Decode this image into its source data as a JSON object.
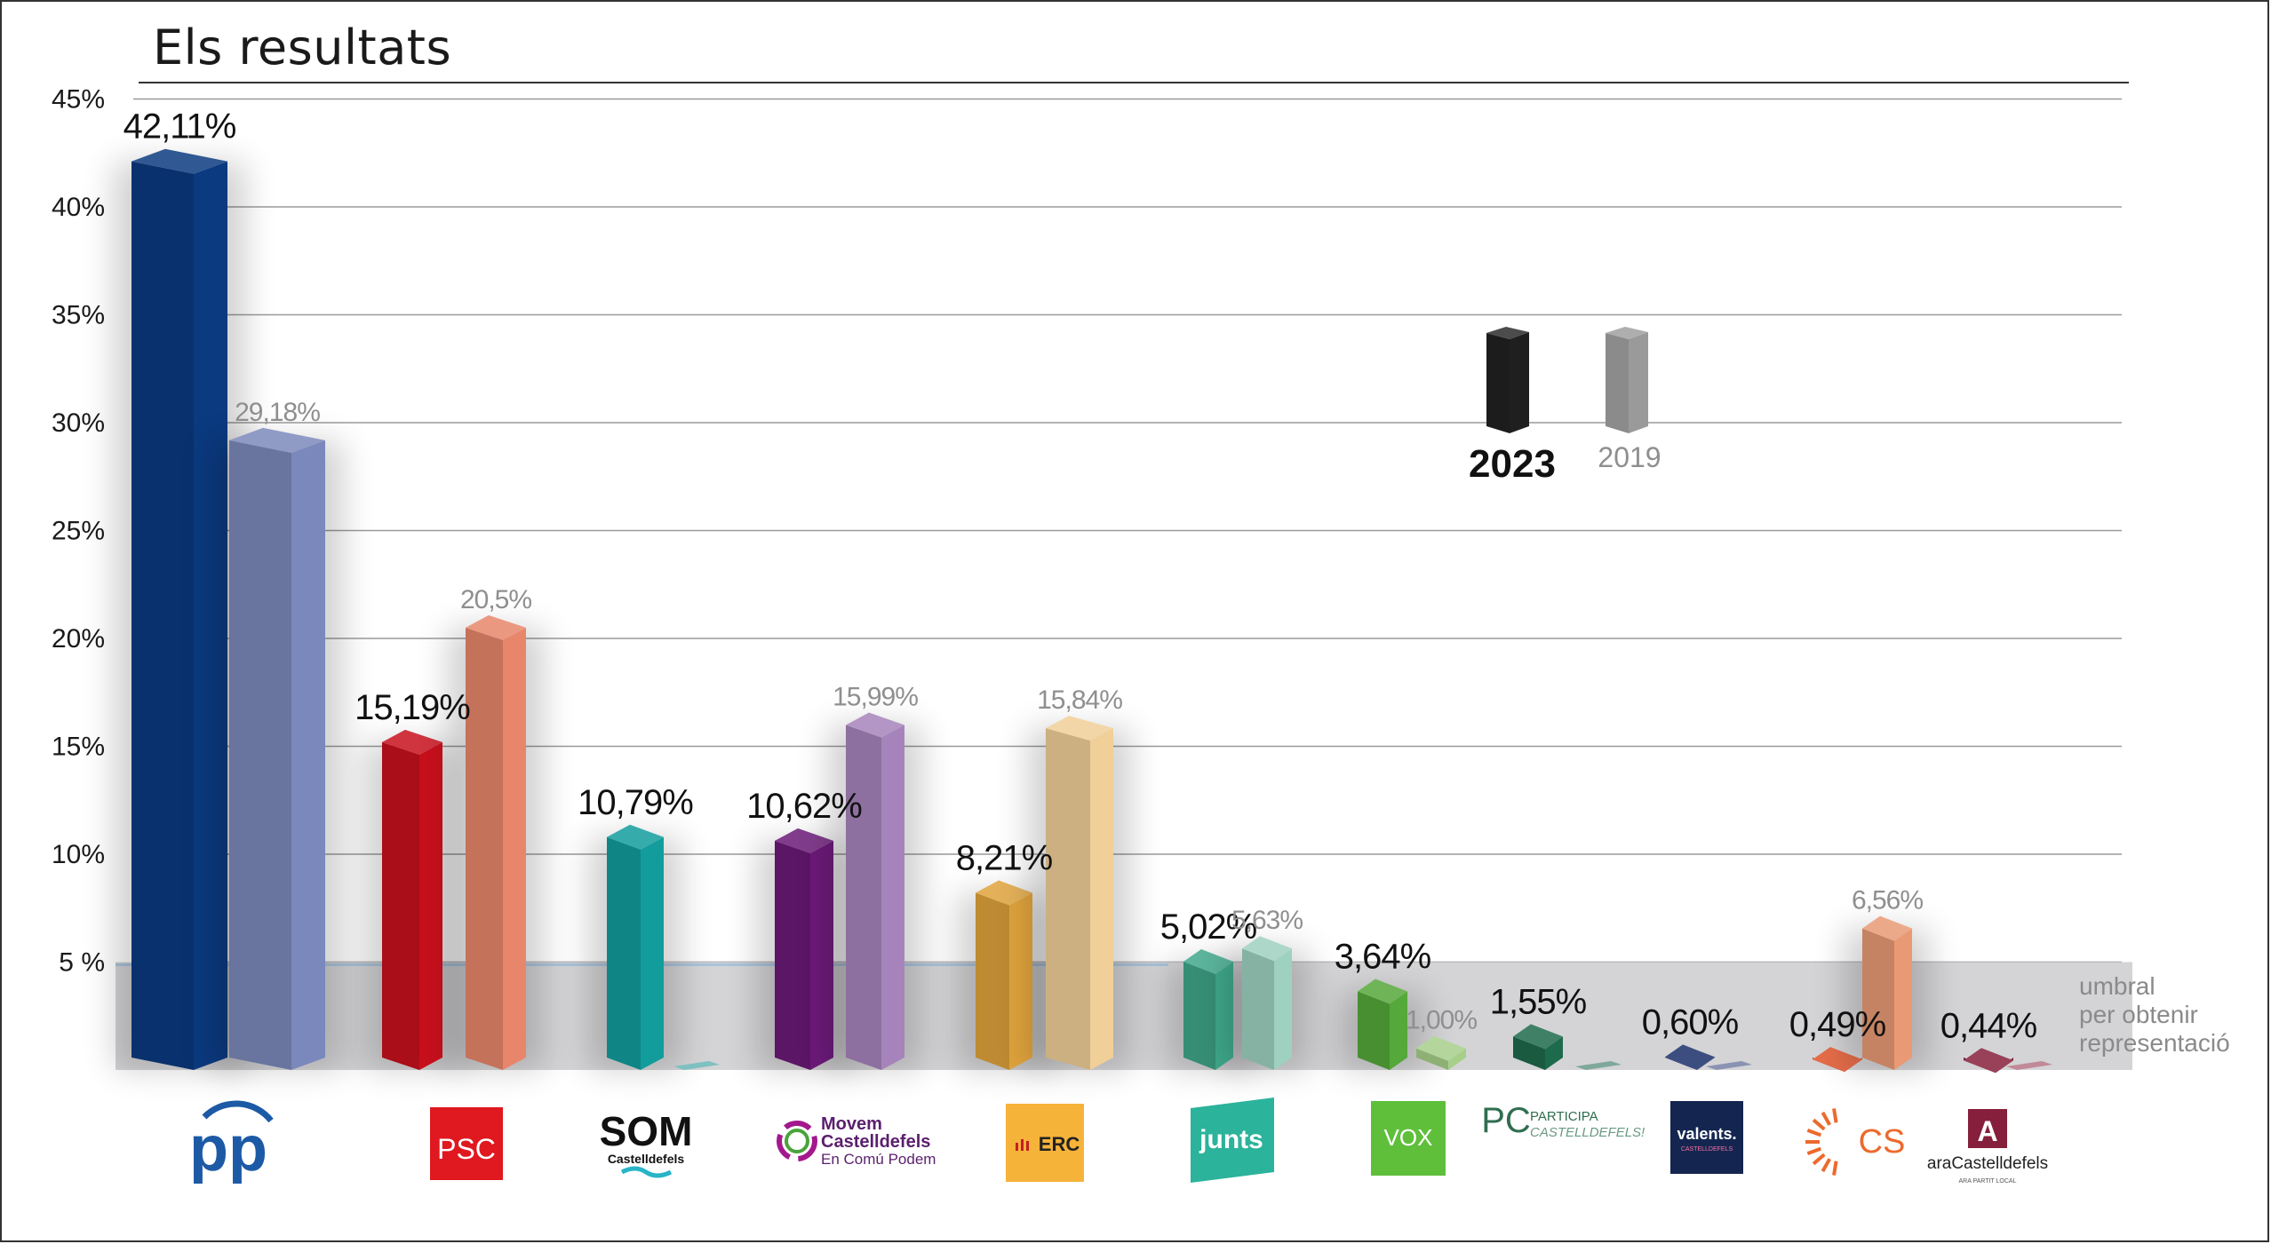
{
  "title": "Els resultats",
  "threshold": {
    "value": 5,
    "label_lines": [
      "umbral",
      "per obtenir",
      "representació"
    ]
  },
  "legend": {
    "current": {
      "label": "2023",
      "color": "#1f1f1f"
    },
    "previous": {
      "label": "2019",
      "color": "#9a9a9a"
    }
  },
  "chart_data": {
    "type": "bar",
    "title": "Els resultats",
    "xlabel": "",
    "ylabel": "",
    "ylim": [
      0,
      45
    ],
    "yticks": [
      "5 %",
      "10%",
      "15%",
      "20%",
      "25%",
      "30%",
      "35%",
      "40%",
      "45%"
    ],
    "ytick_values": [
      5,
      10,
      15,
      20,
      25,
      30,
      35,
      40,
      45
    ],
    "grid": true,
    "legend_position": "top-right",
    "categories": [
      "PP",
      "PSC",
      "SOM Castelldefels",
      "Movem Castelldefels En Comú Podem",
      "ERC",
      "Junts",
      "VOX",
      "Participa Castelldefels",
      "Valents Castelldefels",
      "CS",
      "Ara Castelldefels"
    ],
    "series": [
      {
        "name": "2023",
        "values": [
          42.11,
          15.19,
          10.79,
          10.62,
          8.21,
          5.02,
          3.64,
          1.55,
          0.6,
          0.49,
          0.44
        ],
        "labels": [
          "42,11%",
          "15,19%",
          "10,79%",
          "10,62%",
          "8,21%",
          "5,02%",
          "3,64%",
          "1,55%",
          "0,60%",
          "0,49%",
          "0,44%"
        ],
        "colors": [
          "#0b3a80",
          "#c8101c",
          "#129c9c",
          "#6b1a78",
          "#dfa33c",
          "#3fa88a",
          "#55a83a",
          "#1d6a4c",
          "#1a2d6a",
          "#e0532a",
          "#861f3c"
        ]
      },
      {
        "name": "2019",
        "values": [
          29.18,
          20.5,
          0,
          15.99,
          15.84,
          5.63,
          1.0,
          0,
          0,
          6.56,
          0
        ],
        "labels": [
          "29,18%",
          "20,5%",
          "",
          "15,99%",
          "15,84%",
          "5,63%",
          "1,00%",
          "",
          "",
          "6,56%",
          ""
        ],
        "colors": [
          "#7b88bb",
          "#e8866b",
          "#7fc0c0",
          "#a684bb",
          "#f0cf98",
          "#9ed1c0",
          "#a7cf8a",
          "#7fa89b",
          "#8b93b3",
          "#e99a74",
          "#c08a98"
        ]
      }
    ]
  },
  "logos": [
    {
      "name": "pp-logo",
      "text": "pp",
      "color": "#1c5aa6"
    },
    {
      "name": "psc-logo",
      "text": "PSC",
      "color": "#e0181f"
    },
    {
      "name": "som-logo",
      "text": "SOM",
      "sub": "Castelldefels",
      "color": "#111111"
    },
    {
      "name": "movem-logo",
      "line1": "Movem",
      "line2": "Castelldefels",
      "line3": "En Comú Podem",
      "color": "#5b1f6e"
    },
    {
      "name": "erc-logo",
      "text": "ERC",
      "color": "#f6b33a"
    },
    {
      "name": "junts-logo",
      "text": "junts",
      "color": "#2bb39b"
    },
    {
      "name": "vox-logo",
      "text": "VOX",
      "color": "#5fbf3a"
    },
    {
      "name": "participa-logo",
      "mark": "PC",
      "line1": "PARTICIPA",
      "line2": "CASTELLDEFELS!",
      "color": "#2f6e4f"
    },
    {
      "name": "valents-logo",
      "text": "valents.",
      "sub": "CASTELLDEFELS",
      "color": "#142650"
    },
    {
      "name": "cs-logo",
      "text": "CS",
      "color": "#ec6a2c"
    },
    {
      "name": "ara-logo",
      "mark": "A",
      "text": "araCastelldefels",
      "sub": "ARA PARTIT LOCAL",
      "color": "#861f3c"
    }
  ]
}
